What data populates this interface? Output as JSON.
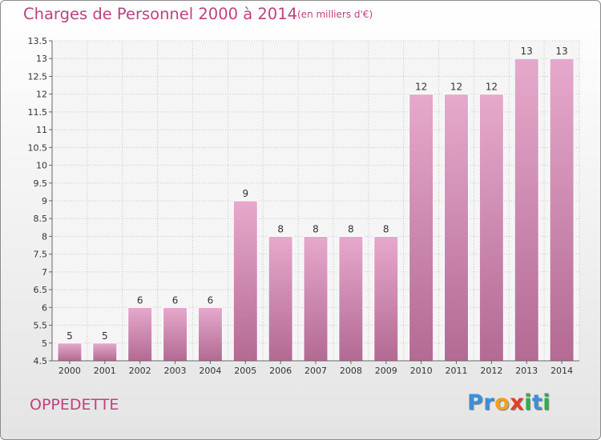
{
  "title": "Charges de Personnel 2000 à 2014",
  "subtitle": "(en milliers d'€)",
  "commune": "OPPEDETTE",
  "logo": {
    "text": "Proxiti",
    "letters": [
      {
        "char": "P",
        "color": "#3d8fd6"
      },
      {
        "char": "r",
        "color": "#3d8fd6"
      },
      {
        "char": "o",
        "color": "#f0a020"
      },
      {
        "char": "x",
        "color": "#e83a2a"
      },
      {
        "char": "i",
        "color": "#2fae4a"
      },
      {
        "char": "t",
        "color": "#3d8fd6"
      },
      {
        "char": "i",
        "color": "#2fae4a"
      }
    ]
  },
  "chart_data": {
    "type": "bar",
    "categories": [
      "2000",
      "2001",
      "2002",
      "2003",
      "2004",
      "2005",
      "2006",
      "2007",
      "2008",
      "2009",
      "2010",
      "2011",
      "2012",
      "2013",
      "2014"
    ],
    "values": [
      5,
      5,
      6,
      6,
      6,
      9,
      8,
      8,
      8,
      8,
      12,
      12,
      12,
      13,
      13
    ],
    "data_labels": [
      "5",
      "5",
      "6",
      "6",
      "6",
      "9",
      "8",
      "8",
      "8",
      "8",
      "12",
      "12",
      "12",
      "13",
      "13"
    ],
    "yticks": [
      "4.5",
      "5",
      "5.5",
      "6",
      "6.5",
      "7",
      "7.5",
      "8",
      "8.5",
      "9",
      "9.5",
      "10",
      "10.5",
      "11",
      "11.5",
      "12",
      "12.5",
      "13",
      "13.5"
    ],
    "ylim": [
      4.5,
      13.5
    ],
    "bar_color": "#d987b2",
    "grid": true
  }
}
